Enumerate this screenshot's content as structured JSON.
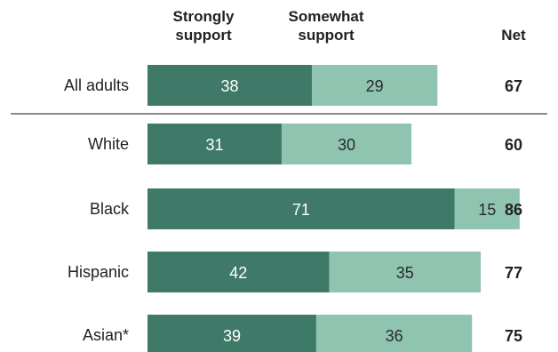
{
  "chart_data": {
    "type": "bar",
    "orientation": "horizontal",
    "stacked": true,
    "column_headers": {
      "strongly": [
        "Strongly",
        "support"
      ],
      "somewhat": [
        "Somewhat",
        "support"
      ],
      "net": "Net"
    },
    "categories": [
      "All adults",
      "White",
      "Black",
      "Hispanic",
      "Asian*"
    ],
    "series": [
      {
        "key": "strongly",
        "values": [
          38,
          31,
          71,
          42,
          39
        ],
        "color": "#3f7a69"
      },
      {
        "key": "somewhat",
        "values": [
          29,
          30,
          15,
          35,
          36
        ],
        "color": "#8fc4b0"
      }
    ],
    "net": [
      67,
      60,
      86,
      77,
      75
    ],
    "xlim": [
      0,
      100
    ],
    "grid": false,
    "separator_after": "All adults",
    "colors": {
      "label_on_dark": "#ffffff",
      "label_on_light": "#2a2a2a",
      "separator": "#8a8a8a"
    }
  }
}
